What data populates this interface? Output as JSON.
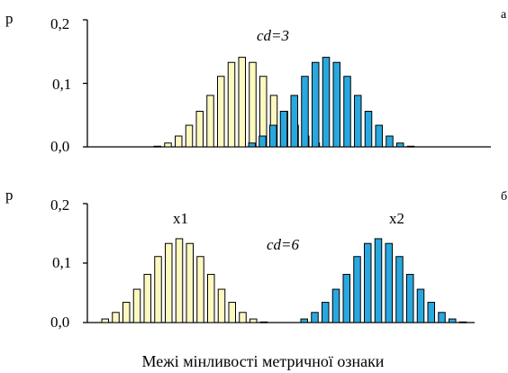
{
  "chart_data": [
    {
      "type": "bar",
      "ylabel": "p",
      "ylim": [
        0,
        0.2
      ],
      "yticks": [
        "0,0",
        "0,1",
        "0,2"
      ],
      "annotation": "cd=3",
      "corner_mark": "а",
      "series": [
        {
          "color": "#fdf8bf",
          "values": [
            0.001,
            0.006,
            0.017,
            0.034,
            0.056,
            0.081,
            0.111,
            0.133,
            0.141,
            0.133,
            0.111,
            0.081,
            0.056,
            0.034,
            0.017,
            0.006
          ]
        },
        {
          "color": "#29a8e0",
          "values": [
            0.006,
            0.017,
            0.034,
            0.056,
            0.081,
            0.111,
            0.133,
            0.141,
            0.133,
            0.111,
            0.081,
            0.056,
            0.034,
            0.017,
            0.006,
            0.001
          ]
        }
      ]
    },
    {
      "type": "bar",
      "ylabel": "p",
      "ylim": [
        0,
        0.2
      ],
      "yticks": [
        "0,0",
        "0,1",
        "0,2"
      ],
      "annotation": "cd=6",
      "corner_mark": "б",
      "series_labels": [
        "x1",
        "x2"
      ],
      "series": [
        {
          "color": "#fdf8bf",
          "values": [
            0.006,
            0.017,
            0.034,
            0.056,
            0.081,
            0.111,
            0.133,
            0.141,
            0.133,
            0.111,
            0.081,
            0.056,
            0.034,
            0.017,
            0.006,
            0.001
          ]
        },
        {
          "color": "#29a8e0",
          "values": [
            0.006,
            0.017,
            0.034,
            0.056,
            0.081,
            0.111,
            0.133,
            0.141,
            0.133,
            0.111,
            0.081,
            0.056,
            0.034,
            0.017,
            0.006,
            0.001
          ]
        }
      ]
    }
  ],
  "xlabel": "Межі мінливості метричної ознаки"
}
